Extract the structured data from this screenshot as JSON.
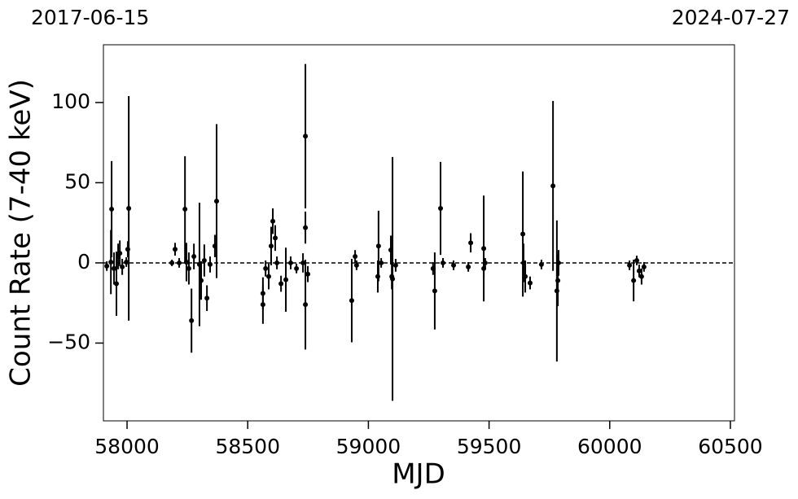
{
  "chart_data": {
    "type": "scatter",
    "annotations": [
      "2017-06-15",
      "2024-07-27"
    ],
    "x_label": "MJD",
    "y_label": "Count Rate (7-40 keV)",
    "x": [
      57916,
      57933,
      57936,
      57946,
      57956,
      57963,
      57970,
      57980,
      57997,
      58003,
      58007,
      58186,
      58199,
      58216,
      58240,
      58246,
      58256,
      58267,
      58277,
      58300,
      58307,
      58320,
      58331,
      58344,
      58364,
      58371,
      58563,
      58563,
      58574,
      58587,
      58597,
      58604,
      58614,
      58621,
      58638,
      58658,
      58678,
      58702,
      58729,
      58739,
      58739,
      58739,
      58749,
      58931,
      58945,
      58951,
      59039,
      59042,
      59053,
      59093,
      59097,
      59100,
      59113,
      59268,
      59275,
      59299,
      59309,
      59353,
      59414,
      59424,
      59478,
      59478,
      59484,
      59640,
      59643,
      59650,
      59670,
      59717,
      59765,
      59781,
      59785,
      59788,
      60082,
      60099,
      60112,
      60122,
      60132,
      60142
    ],
    "values": [
      -2,
      0.5,
      33.5,
      -3.5,
      -13,
      4,
      6,
      -2.5,
      0.5,
      8.5,
      34,
      0,
      8.5,
      0,
      33.5,
      0.5,
      -3.5,
      -36,
      4,
      -1,
      -11,
      1.5,
      -22,
      -1,
      10.5,
      38.5,
      -19,
      -26,
      -3.5,
      -8.5,
      10.5,
      26,
      15.5,
      0,
      -13,
      -10.5,
      0,
      -3.5,
      0,
      79,
      22,
      -26,
      -7,
      -23.5,
      4,
      -1.5,
      -8.5,
      10.5,
      0,
      8,
      -8.5,
      -10,
      -1.5,
      -3.5,
      -17.5,
      34,
      0,
      -1.5,
      -2.5,
      12.5,
      -3.5,
      9,
      0,
      18,
      0,
      -8.5,
      -12.5,
      -1,
      48,
      -17.5,
      -11,
      0,
      -1.5,
      -11,
      1.5,
      -5,
      -8.5,
      -2.5
    ],
    "errors": [
      3,
      20,
      30,
      10,
      20,
      8,
      8,
      5,
      3,
      5,
      70,
      2,
      4,
      3,
      33,
      12,
      10,
      20,
      8,
      38.5,
      12,
      10,
      8,
      5,
      7,
      48,
      10,
      12,
      5,
      8,
      12,
      8,
      8,
      4,
      5,
      20,
      4,
      3,
      6,
      45,
      10,
      28,
      5,
      26,
      4,
      3,
      10,
      22,
      3,
      9,
      8,
      76,
      4,
      4,
      24,
      29,
      3,
      3,
      3,
      6,
      6,
      33,
      3,
      39,
      12,
      10,
      4,
      3,
      53,
      44,
      16,
      8,
      3,
      13,
      3,
      4,
      5,
      3
    ],
    "color": "#000000",
    "hline": 0,
    "xlim": [
      57902,
      60517
    ],
    "ylim": [
      -98.5,
      136
    ],
    "xticks": [
      58000,
      58500,
      59000,
      59500,
      60000,
      60500
    ],
    "yticks": [
      {
        "value": -50,
        "label": "−50"
      },
      0,
      50,
      100
    ]
  }
}
